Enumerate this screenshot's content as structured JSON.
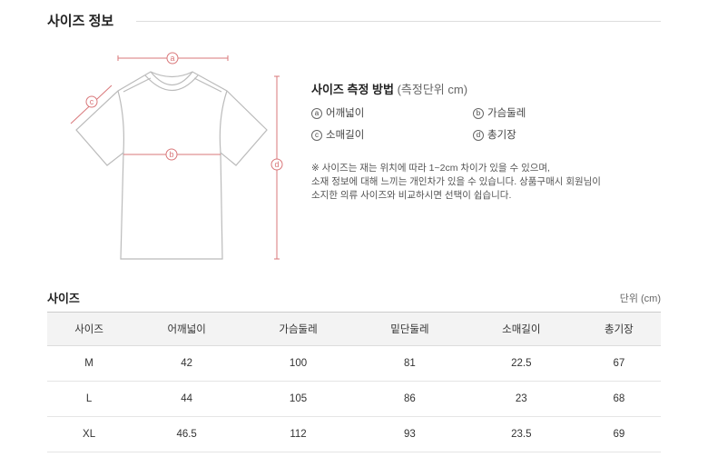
{
  "section_title": "사이즈 정보",
  "accent_color": "#d9777a",
  "diagram_labels": {
    "a": "a",
    "b": "b",
    "c": "c",
    "d": "d"
  },
  "method": {
    "title": "사이즈 측정 방법",
    "unit_note": "(측정단위 cm)",
    "items": [
      {
        "mark": "a",
        "label": "어깨넓이"
      },
      {
        "mark": "b",
        "label": "가슴둘레"
      },
      {
        "mark": "c",
        "label": "소매길이"
      },
      {
        "mark": "d",
        "label": "총기장"
      }
    ],
    "note_lines": [
      "※ 사이즈는 재는 위치에 따라 1~2cm 차이가 있을 수 있으며,",
      "소재 정보에 대해 느끼는 개인차가 있을 수 있습니다. 상품구매시 회원님이",
      "소지한 의류 사이즈와 비교하시면 선택이 쉽습니다."
    ]
  },
  "size_table": {
    "title": "사이즈",
    "unit": "단위 (cm)",
    "headers": [
      "사이즈",
      "어깨넓이",
      "가슴둘레",
      "밑단둘레",
      "소매길이",
      "총기장"
    ],
    "rows": [
      [
        "M",
        "42",
        "100",
        "81",
        "22.5",
        "67"
      ],
      [
        "L",
        "44",
        "105",
        "86",
        "23",
        "68"
      ],
      [
        "XL",
        "46.5",
        "112",
        "93",
        "23.5",
        "69"
      ]
    ]
  }
}
